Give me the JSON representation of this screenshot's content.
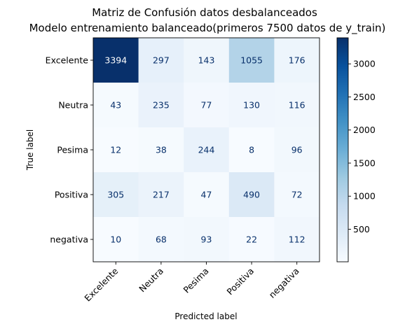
{
  "chart_data": {
    "type": "heatmap",
    "title_lines": [
      "Matriz de Confusión datos desbalanceados",
      "Modelo entrenamiento balanceado(primeros 7500 datos de y_train)"
    ],
    "xlabel": "Predicted label",
    "ylabel": "True label",
    "labels": [
      "Excelente",
      "Neutra",
      "Pesima",
      "Positiva",
      "negativa"
    ],
    "matrix": [
      [
        3394,
        297,
        143,
        1055,
        176
      ],
      [
        43,
        235,
        77,
        130,
        116
      ],
      [
        12,
        38,
        244,
        8,
        96
      ],
      [
        305,
        217,
        47,
        490,
        72
      ],
      [
        10,
        68,
        93,
        22,
        112
      ]
    ],
    "colormap": "Blues",
    "colorbar": {
      "ticks": [
        500,
        1000,
        1500,
        2000,
        2500,
        3000
      ],
      "tick_labels": [
        "500",
        "1000",
        "1500",
        "2000",
        "2500",
        "3000"
      ],
      "min": 8,
      "max": 3394
    },
    "grid": false,
    "text_color_light": "#ffffff",
    "text_color_dark": "#08306b"
  }
}
